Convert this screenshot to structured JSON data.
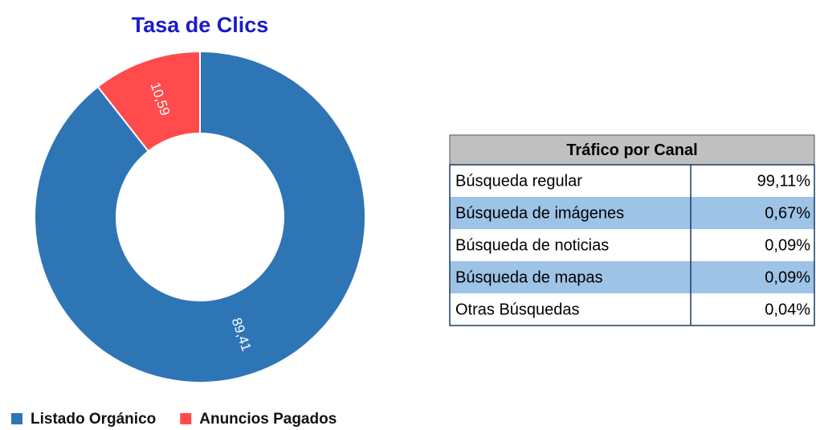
{
  "chart_data": {
    "type": "donut",
    "title": "Tasa de Clics",
    "categories": [
      "Listado Orgánico",
      "Anuncios Pagados"
    ],
    "values": [
      89.41,
      10.59
    ],
    "value_labels": [
      "89,41",
      "10,59"
    ],
    "colors": [
      "#2e75b6",
      "#ff4b4b"
    ],
    "legend": "bottom"
  },
  "table": {
    "title": "Tráfico por Canal",
    "rows": [
      [
        "Búsqueda regular",
        "99,11%"
      ],
      [
        "Búsqueda de imágenes",
        "0,67%"
      ],
      [
        "Búsqueda de noticias",
        "0,09%"
      ],
      [
        "Búsqueda de mapas",
        "0,09%"
      ],
      [
        "Otras Búsquedas",
        "0,04%"
      ]
    ]
  }
}
